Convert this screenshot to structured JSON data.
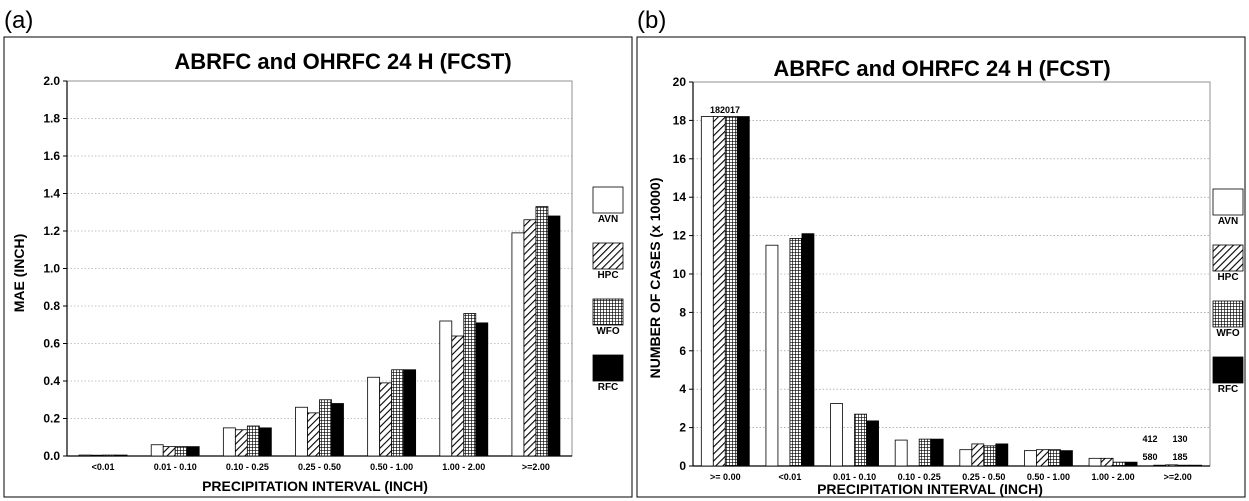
{
  "panels": [
    {
      "label": "(a)"
    },
    {
      "label": "(b)"
    }
  ],
  "chart_data": [
    {
      "type": "bar",
      "title": "ABRFC and OHRFC  24 H  (FCST)",
      "xlabel": "PRECIPITATION INTERVAL (INCH)",
      "ylabel": "MAE (INCH)",
      "ylim": [
        0,
        2.0
      ],
      "yticks": [
        "0.0",
        "0.2",
        "0.4",
        "0.6",
        "0.8",
        "1.0",
        "1.2",
        "1.4",
        "1.6",
        "1.8",
        "2.0"
      ],
      "grid": true,
      "legend": "right",
      "categories": [
        "<0.01",
        "0.01 - 0.10",
        "0.10 - 0.25",
        "0.25 - 0.50",
        "0.50 - 1.00",
        "1.00 - 2.00",
        ">=2.00"
      ],
      "series": [
        {
          "name": "AVN",
          "pattern": "blank",
          "values": [
            0.005,
            0.06,
            0.15,
            0.26,
            0.42,
            0.72,
            1.19
          ]
        },
        {
          "name": "HPC",
          "pattern": "hatch",
          "values": [
            0.003,
            0.05,
            0.14,
            0.23,
            0.39,
            0.64,
            1.26
          ]
        },
        {
          "name": "WFO",
          "pattern": "grid",
          "values": [
            0.005,
            0.05,
            0.16,
            0.3,
            0.46,
            0.76,
            1.33
          ]
        },
        {
          "name": "RFC",
          "pattern": "solid",
          "values": [
            0.005,
            0.05,
            0.15,
            0.28,
            0.46,
            0.71,
            1.28
          ]
        }
      ]
    },
    {
      "type": "bar",
      "title": "ABRFC and OHRFC  24 H  (FCST)",
      "xlabel": "PRECIPITATION INTERVAL (INCH)",
      "ylabel": "NUMBER OF CASES (x 10000)",
      "ylim": [
        0,
        20
      ],
      "yticks": [
        "0",
        "2",
        "4",
        "6",
        "8",
        "10",
        "12",
        "14",
        "16",
        "18",
        "20"
      ],
      "grid": true,
      "legend": "right",
      "categories": [
        ">= 0.00",
        "<0.01",
        "0.01 - 0.10",
        "0.10 - 0.25",
        "0.25 - 0.50",
        "0.50 - 1.00",
        "1.00 - 2.00",
        ">=2.00"
      ],
      "series": [
        {
          "name": "AVN",
          "pattern": "blank",
          "values": [
            18.2,
            11.5,
            3.25,
            1.35,
            0.85,
            0.8,
            0.4,
            0.04
          ]
        },
        {
          "name": "HPC",
          "pattern": "hatch",
          "values": [
            18.2,
            0,
            0,
            0,
            1.15,
            0.85,
            0.4,
            0.06
          ]
        },
        {
          "name": "WFO",
          "pattern": "grid",
          "values": [
            18.2,
            11.85,
            2.7,
            1.4,
            1.05,
            0.85,
            0.2,
            0.02
          ]
        },
        {
          "name": "RFC",
          "pattern": "solid",
          "values": [
            18.2,
            12.1,
            2.35,
            1.4,
            1.15,
            0.8,
            0.2,
            0.02
          ]
        }
      ],
      "annotations": [
        "182017",
        "412",
        "130",
        "580",
        "185"
      ]
    }
  ]
}
